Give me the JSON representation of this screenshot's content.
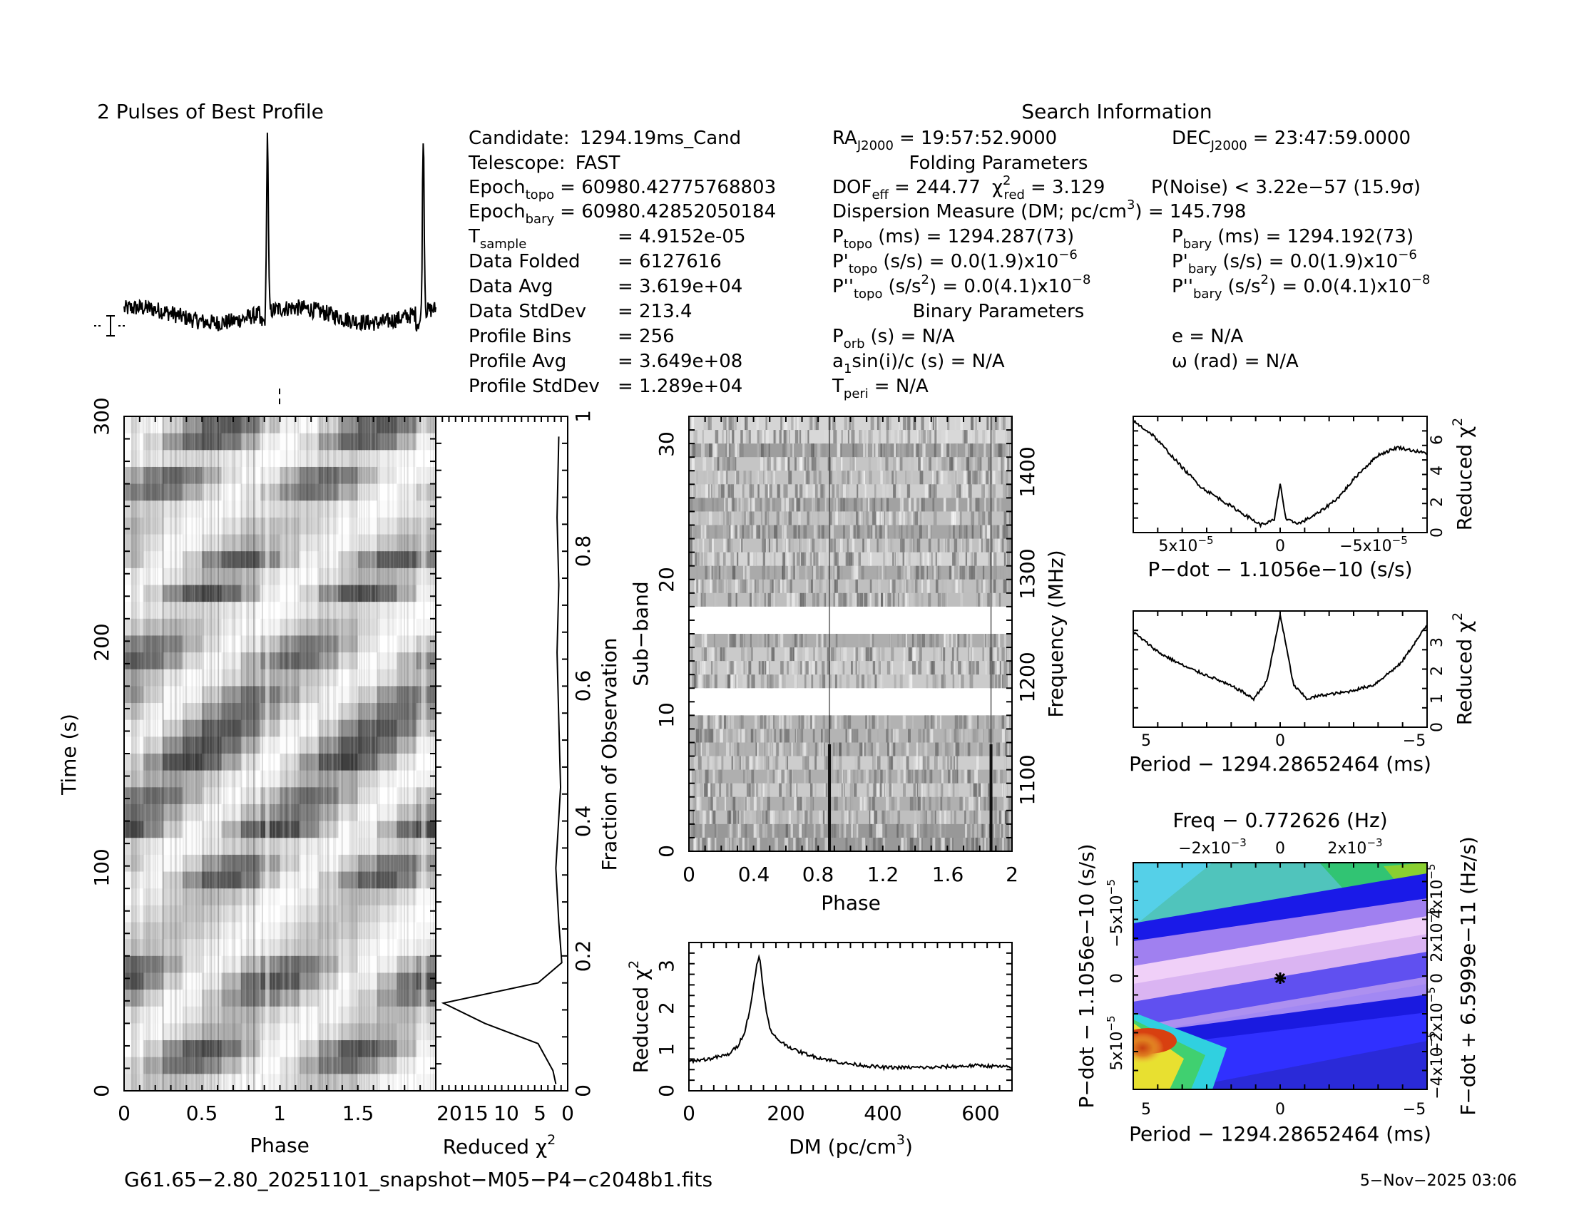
{
  "profile": {
    "title": "2 Pulses of Best Profile"
  },
  "search_info": {
    "title": "Search Information"
  },
  "candidate": {
    "candidate_label": "Candidate:",
    "candidate": "1294.19ms_Cand",
    "telescope_label": "Telescope:",
    "telescope": "FAST",
    "epoch_topo_label": "Epoch",
    "epoch_topo_sub": "topo",
    "epoch_topo": "= 60980.42775768803",
    "epoch_bary_label": "Epoch",
    "epoch_bary_sub": "bary",
    "epoch_bary": "= 60980.42852050184",
    "tsample_label": "T",
    "tsample_sub": "sample",
    "tsample": "=  4.9152e-05",
    "folded_label": "Data Folded",
    "folded": "=  6127616",
    "avg_label": "Data Avg",
    "avg": "=  3.619e+04",
    "std_label": "Data StdDev",
    "std": "=  213.4",
    "bins_label": "Profile Bins",
    "bins": "=  256",
    "pavg_label": "Profile Avg",
    "pavg": "=  3.649e+08",
    "pstd_label": "Profile StdDev",
    "pstd": "=  1.289e+04"
  },
  "coords": {
    "ra_label": "RA",
    "ra_sub": "J2000",
    "ra": "= 19:57:52.9000",
    "dec_label": "DEC",
    "dec_sub": "J2000",
    "dec": "= 23:47:59.0000"
  },
  "folding": {
    "title": "Folding Parameters",
    "dof_label": "DOF",
    "dof_sub": "eff",
    "dof": "= 244.77",
    "chi_label": "χ",
    "chi_sup": "2",
    "chi_sub": "red",
    "chi": "= 3.129",
    "noise": "P(Noise) < 3.22e−57   (15.9σ)",
    "dm_a": "Dispersion Measure (DM; pc/cm",
    "dm_sup": "3",
    "dm_b": ") = 145.798",
    "ptopo_label": "P",
    "ptopo_sub": "topo",
    "ptopo": "(ms)  =   1294.287(73)",
    "pbary_label": "P",
    "pbary_sub": "bary",
    "pbary": "(ms)  =   1294.192(73)",
    "pdtopo_label": "P'",
    "pdtopo_sub": "topo",
    "pdtopo": "(s/s)  = 0.0(1.9)x10",
    "pdtopo_exp": "−6",
    "pdbary_label": "P'",
    "pdbary_sub": "bary",
    "pdbary": "(s/s)  = 0.0(1.9)x10",
    "pdbary_exp": "−6",
    "pddtopo_label": "P''",
    "pddtopo_sub": "topo",
    "pddtopo_a": "(s/s",
    "pddtopo_sup": "2",
    "pddtopo_b": ") = 0.0(4.1)x10",
    "pddtopo_exp": "−8",
    "pddbary_label": "P''",
    "pddbary_sub": "bary",
    "pddbary_a": "(s/s",
    "pddbary_sup": "2",
    "pddbary_b": ") = 0.0(4.1)x10",
    "pddbary_exp": "−8"
  },
  "binary": {
    "title": "Binary Parameters",
    "porb_label": "P",
    "porb_sub": "orb",
    "porb": "(s) = N/A",
    "e": "e = N/A",
    "a1_a": "a",
    "a1_sub": "1",
    "a1_b": "sin(i)/c (s) = N/A",
    "omega": "ω (rad) = N/A",
    "tperi_label": "T",
    "tperi_sub": "peri",
    "tperi": "= N/A"
  },
  "footer": {
    "filename": "G61.65−2.80_20251101_snapshot−M05−P4−c2048b1.fits",
    "date": "5−Nov−2025 03:06"
  },
  "time_phase": {
    "xlabel": "Phase",
    "ylabel": "Time (s)",
    "xticks": [
      "0",
      "0.5",
      "1",
      "1.5"
    ],
    "yticks": [
      "0",
      "100",
      "200",
      "300"
    ],
    "xlim": [
      0,
      2
    ],
    "ylim": [
      0,
      300
    ]
  },
  "time_chi": {
    "xlabel": "Reduced χ",
    "xlabel_sup": "2",
    "ylabel": "Fraction of Observation",
    "xticks": [
      "20",
      "15",
      "10",
      "5",
      "0"
    ],
    "yticks": [
      "0",
      "0.2",
      "0.4",
      "0.6",
      "0.8",
      "1"
    ]
  },
  "subband": {
    "xlabel": "Phase",
    "ylabel": "Sub−band",
    "y2label": "Frequency (MHz)",
    "xticks": [
      "0",
      "0.4",
      "0.8",
      "1.2",
      "1.6",
      "2"
    ],
    "yticks": [
      "0",
      "10",
      "20",
      "30"
    ],
    "y2ticks": [
      "1100",
      "1200",
      "1300",
      "1400"
    ],
    "masked_subbands": [
      10,
      11,
      16,
      17
    ]
  },
  "dm_plot": {
    "xlabel": "DM (pc/cm",
    "xlabel_sup": "3",
    "xlabel_end": ")",
    "ylabel": "Reduced χ",
    "ylabel_sup": "2",
    "xticks": [
      "0",
      "200",
      "400",
      "600"
    ],
    "yticks": [
      "0",
      "1",
      "2",
      "3"
    ]
  },
  "pdot_plot": {
    "xlabel": "P−dot − 1.1056e−10 (s/s)",
    "ylabel": "Reduced χ",
    "ylabel_sup": "2",
    "xticks": [
      "5x10",
      "0",
      "−5x10"
    ],
    "xtick_exp": "−5",
    "yticks": [
      "0",
      "2",
      "4",
      "6"
    ]
  },
  "period_plot": {
    "xlabel": "Period − 1294.28652464 (ms)",
    "ylabel": "Reduced χ",
    "ylabel_sup": "2",
    "xticks": [
      "5",
      "0",
      "−5"
    ],
    "yticks": [
      "0",
      "1",
      "2",
      "3"
    ]
  },
  "ppdot_plot": {
    "top_label": "Freq − 0.772626 (Hz)",
    "xlabel": "Period − 1294.28652464 (ms)",
    "ylabel": "P−dot − 1.1056e−10 (s/s)",
    "y2label": "F−dot + 6.5999e−11 (Hz/s)",
    "xticks": [
      "5",
      "0",
      "−5"
    ],
    "topticks": [
      "−2x10",
      "0",
      "2x10"
    ],
    "top_exp": "−3",
    "yticks": [
      "5x10",
      "0",
      "−5x10"
    ],
    "ytick_exp": "−5",
    "y2ticks": [
      "−4x10",
      "−2x10",
      "0",
      "2x10",
      "4x10"
    ],
    "y2tick_exp": "−5"
  },
  "chart_data": [
    {
      "type": "line",
      "name": "pulse-profile",
      "title": "2 Pulses of Best Profile",
      "x_range": [
        0,
        2
      ],
      "peak_phases": [
        0.92,
        1.92
      ],
      "baseline": 0.05,
      "peak_height": 1.0
    },
    {
      "type": "heatmap",
      "name": "time-vs-phase",
      "x": [
        0,
        2
      ],
      "y": [
        0,
        300
      ],
      "xlabel": "Phase",
      "ylabel": "Time (s)",
      "pulse_phase": 0.92,
      "dark_rows_s": [
        20,
        45,
        55,
        100,
        125,
        130,
        155,
        170,
        180,
        200,
        225,
        240,
        275,
        295
      ]
    },
    {
      "type": "line",
      "name": "time-reduced-chi2",
      "xlabel": "Reduced χ2",
      "ylabel": "Fraction of Observation",
      "xlim": [
        20,
        0
      ],
      "ylim": [
        0,
        1
      ],
      "points": [
        [
          2,
          0.01
        ],
        [
          2.5,
          0.03
        ],
        [
          5,
          0.07
        ],
        [
          14,
          0.1
        ],
        [
          21,
          0.13
        ],
        [
          5,
          0.16
        ],
        [
          1,
          0.19
        ],
        [
          1.5,
          0.25
        ],
        [
          2,
          0.33
        ],
        [
          1.2,
          0.45
        ],
        [
          1.5,
          0.55
        ],
        [
          1.8,
          0.65
        ],
        [
          1.5,
          0.75
        ],
        [
          1.8,
          0.85
        ],
        [
          1.5,
          0.97
        ]
      ]
    },
    {
      "type": "heatmap",
      "name": "subband-vs-phase",
      "x": [
        0,
        2
      ],
      "y": [
        0,
        32
      ],
      "xlabel": "Phase",
      "ylabel": "Sub−band",
      "vertical_lines_phase": [
        0.87,
        1.87
      ]
    },
    {
      "type": "line",
      "name": "dm-reduced-chi2",
      "xlabel": "DM (pc/cm3)",
      "ylabel": "Reduced χ2",
      "xlim": [
        0,
        665
      ],
      "ylim": [
        0,
        3.5
      ],
      "x": [
        0,
        40,
        80,
        100,
        115,
        125,
        135,
        140,
        145,
        150,
        160,
        170,
        190,
        220,
        260,
        320,
        400,
        500,
        600,
        665
      ],
      "y": [
        0.7,
        0.75,
        0.85,
        1.05,
        1.4,
        1.9,
        2.6,
        3.0,
        3.2,
        2.7,
        1.8,
        1.35,
        1.15,
        0.95,
        0.8,
        0.65,
        0.55,
        0.55,
        0.6,
        0.55
      ]
    },
    {
      "type": "line",
      "name": "pdot-reduced-chi2",
      "xlabel": "P−dot − 1.1056e−10 (s/s)",
      "ylabel": "Reduced χ2",
      "xlim": [
        7.5e-05,
        -7.5e-05
      ],
      "ylim": [
        0,
        7.5
      ],
      "x": [
        7.5e-05,
        6.5e-05,
        5e-05,
        4e-05,
        3e-05,
        2e-05,
        1e-05,
        3e-06,
        0,
        -3e-06,
        -1e-05,
        -2e-05,
        -3e-05,
        -4e-05,
        -5e-05,
        -6e-05,
        -7.5e-05
      ],
      "y": [
        7.2,
        6.3,
        4.2,
        2.9,
        2.1,
        1.3,
        0.5,
        0.8,
        3.2,
        0.8,
        0.6,
        1.3,
        2.3,
        3.8,
        5.0,
        5.5,
        5.1
      ]
    },
    {
      "type": "line",
      "name": "period-reduced-chi2",
      "xlabel": "Period − 1294.28652464 (ms)",
      "ylabel": "Reduced χ2",
      "xlim": [
        5.5,
        -5.5
      ],
      "ylim": [
        0,
        3.3
      ],
      "x": [
        5.5,
        4.5,
        3.5,
        2.5,
        1.5,
        1.0,
        0.5,
        0.2,
        0,
        -0.2,
        -0.5,
        -1.0,
        -1.5,
        -2.5,
        -3.5,
        -4.5,
        -5.5
      ],
      "y": [
        2.7,
        2.1,
        1.7,
        1.4,
        1.05,
        0.8,
        1.3,
        2.4,
        3.2,
        2.4,
        1.2,
        0.8,
        0.9,
        1.0,
        1.2,
        1.8,
        2.9
      ]
    },
    {
      "type": "heatmap",
      "name": "period-pdot-chi2",
      "xlabel": "Period − 1294.28652464 (ms)",
      "ylabel": "P−dot − 1.1056e−10 (s/s)",
      "xlim": [
        5.5,
        -5.5
      ],
      "ylim": [
        7.5e-05,
        -7.5e-05
      ],
      "best_point": [
        0,
        0
      ]
    }
  ]
}
